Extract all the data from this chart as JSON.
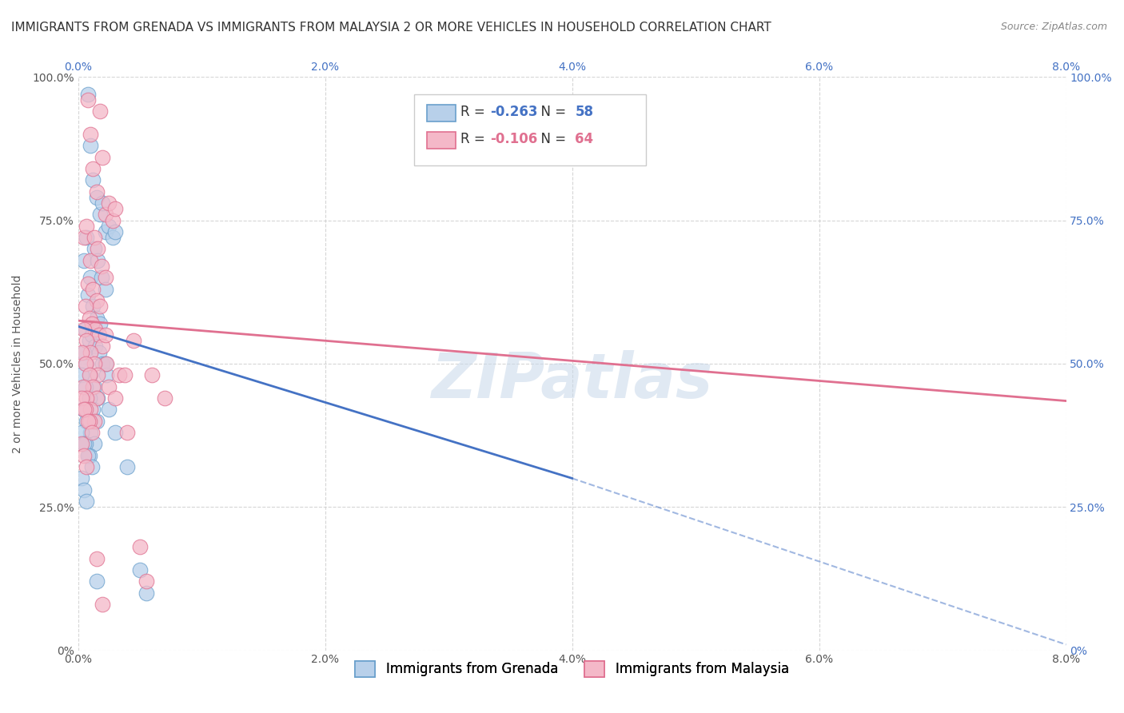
{
  "title": "IMMIGRANTS FROM GRENADA VS IMMIGRANTS FROM MALAYSIA 2 OR MORE VEHICLES IN HOUSEHOLD CORRELATION CHART",
  "source": "Source: ZipAtlas.com",
  "ylabel": "2 or more Vehicles in Household",
  "xlim": [
    0.0,
    0.08
  ],
  "ylim": [
    0.0,
    1.0
  ],
  "xtick_labels": [
    "0.0%",
    "2.0%",
    "4.0%",
    "6.0%",
    "8.0%"
  ],
  "xtick_values": [
    0.0,
    0.02,
    0.04,
    0.06,
    0.08
  ],
  "ytick_labels": [
    "0%",
    "25.0%",
    "50.0%",
    "75.0%",
    "100.0%"
  ],
  "ytick_values": [
    0.0,
    0.25,
    0.5,
    0.75,
    1.0
  ],
  "series": [
    {
      "name": "Immigrants from Grenada",
      "R": -0.263,
      "N": 58,
      "color": "#b8d0ea",
      "edge_color": "#6aa0cc",
      "line_color": "#4472c4",
      "x": [
        0.0008,
        0.001,
        0.0012,
        0.0015,
        0.0018,
        0.002,
        0.0022,
        0.0025,
        0.0028,
        0.003,
        0.0005,
        0.0007,
        0.001,
        0.0013,
        0.0016,
        0.0019,
        0.0022,
        0.0008,
        0.0012,
        0.0015,
        0.0018,
        0.0006,
        0.0009,
        0.0011,
        0.0014,
        0.0017,
        0.002,
        0.0023,
        0.0005,
        0.0007,
        0.001,
        0.0013,
        0.0016,
        0.0003,
        0.0006,
        0.0009,
        0.0012,
        0.0015,
        0.0004,
        0.0007,
        0.001,
        0.0013,
        0.0003,
        0.0006,
        0.0009,
        0.0005,
        0.0008,
        0.0011,
        0.0003,
        0.0005,
        0.0007,
        0.0025,
        0.005,
        0.003,
        0.0022,
        0.004,
        0.0055,
        0.0015
      ],
      "y": [
        0.97,
        0.88,
        0.82,
        0.79,
        0.76,
        0.78,
        0.73,
        0.74,
        0.72,
        0.73,
        0.68,
        0.72,
        0.65,
        0.7,
        0.68,
        0.65,
        0.63,
        0.62,
        0.6,
        0.58,
        0.57,
        0.56,
        0.54,
        0.55,
        0.53,
        0.52,
        0.5,
        0.48,
        0.52,
        0.5,
        0.48,
        0.46,
        0.44,
        0.48,
        0.46,
        0.44,
        0.42,
        0.4,
        0.42,
        0.4,
        0.38,
        0.36,
        0.38,
        0.36,
        0.34,
        0.36,
        0.34,
        0.32,
        0.3,
        0.28,
        0.26,
        0.42,
        0.14,
        0.38,
        0.5,
        0.32,
        0.1,
        0.12
      ]
    },
    {
      "name": "Immigrants from Malaysia",
      "R": -0.106,
      "N": 64,
      "color": "#f4b8c8",
      "edge_color": "#e07090",
      "line_color": "#e07090",
      "x": [
        0.0008,
        0.001,
        0.0012,
        0.0015,
        0.0018,
        0.002,
        0.0022,
        0.0025,
        0.0028,
        0.003,
        0.0005,
        0.0007,
        0.001,
        0.0013,
        0.0016,
        0.0019,
        0.0022,
        0.0008,
        0.0012,
        0.0015,
        0.0018,
        0.0006,
        0.0009,
        0.0011,
        0.0014,
        0.0017,
        0.002,
        0.0023,
        0.0005,
        0.0007,
        0.001,
        0.0013,
        0.0016,
        0.0003,
        0.0006,
        0.0009,
        0.0012,
        0.0015,
        0.0004,
        0.0007,
        0.001,
        0.0013,
        0.0003,
        0.0006,
        0.0009,
        0.0005,
        0.0008,
        0.0011,
        0.0003,
        0.0005,
        0.0007,
        0.0025,
        0.005,
        0.003,
        0.0022,
        0.004,
        0.0055,
        0.0015,
        0.0033,
        0.0045,
        0.006,
        0.007,
        0.0038,
        0.002
      ],
      "y": [
        0.96,
        0.9,
        0.84,
        0.8,
        0.94,
        0.86,
        0.76,
        0.78,
        0.75,
        0.77,
        0.72,
        0.74,
        0.68,
        0.72,
        0.7,
        0.67,
        0.65,
        0.64,
        0.63,
        0.61,
        0.6,
        0.6,
        0.58,
        0.57,
        0.56,
        0.55,
        0.53,
        0.5,
        0.56,
        0.54,
        0.52,
        0.5,
        0.48,
        0.52,
        0.5,
        0.48,
        0.46,
        0.44,
        0.46,
        0.44,
        0.42,
        0.4,
        0.44,
        0.42,
        0.4,
        0.42,
        0.4,
        0.38,
        0.36,
        0.34,
        0.32,
        0.46,
        0.18,
        0.44,
        0.55,
        0.38,
        0.12,
        0.16,
        0.48,
        0.54,
        0.48,
        0.44,
        0.48,
        0.08
      ]
    }
  ],
  "grenada_line": {
    "x0": 0.0,
    "y0": 0.565,
    "x1": 0.04,
    "y1": 0.3,
    "x_dash_end": 0.08,
    "y_dash_end": 0.01
  },
  "malaysia_line": {
    "x0": 0.0,
    "y0": 0.575,
    "x1": 0.08,
    "y1": 0.435
  },
  "watermark": "ZIPatlas",
  "background_color": "#ffffff",
  "grid_color": "#cccccc",
  "title_fontsize": 11,
  "axis_label_fontsize": 10,
  "tick_fontsize": 10
}
